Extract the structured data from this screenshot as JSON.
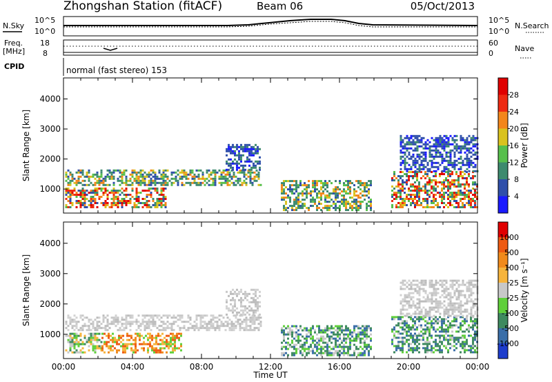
{
  "header": {
    "station": "Zhongshan Station (fitACF)",
    "beam": "Beam 06",
    "date": "05/Oct/2013"
  },
  "housekeeping": {
    "nsky_label": "N.Sky",
    "nsky_ticks": [
      "10^5",
      "10^0"
    ],
    "nsearch_label": "N.Search",
    "nsearch_ticks": [
      "10^5",
      "10^0"
    ],
    "freq_label": "Freq.",
    "freq_unit": "[MHz]",
    "freq_ticks": [
      "18",
      "8"
    ],
    "nave_label": "Nave",
    "nave_ticks": [
      "60",
      "0"
    ],
    "cpid_label": "CPID",
    "cpid_value": "normal (fast stereo) 153"
  },
  "x_axis": {
    "label": "Time UT",
    "ticks": [
      "00:00",
      "04:00",
      "08:00",
      "12:00",
      "16:00",
      "20:00",
      "00:00"
    ]
  },
  "chart_data": [
    {
      "type": "heatmap",
      "quantity": "Power",
      "ylabel": "Slant Range [km]",
      "xlabel": "Time UT",
      "yticks": [
        1000,
        2000,
        3000,
        4000
      ],
      "ylim": [
        200,
        4700
      ],
      "xlim_hours": [
        0,
        24
      ],
      "colorbar": {
        "label": "Power [dB]",
        "ticks": [
          "4",
          "8",
          "12",
          "16",
          "20",
          "24",
          "28"
        ],
        "colors": [
          "#1a1aff",
          "#2f4faa",
          "#3d8a6e",
          "#57bf4c",
          "#d9c21e",
          "#f3861c",
          "#ee2a12",
          "#e00000"
        ]
      },
      "echo_regions": [
        {
          "t_start": 0.1,
          "t_end": 5.9,
          "r_low": 380,
          "r_high": 1050,
          "level": "high"
        },
        {
          "t_start": 0.1,
          "t_end": 11.4,
          "r_low": 1100,
          "r_high": 1650,
          "level": "medium"
        },
        {
          "t_start": 9.4,
          "t_end": 11.4,
          "r_low": 1650,
          "r_high": 2500,
          "level": "low"
        },
        {
          "t_start": 12.6,
          "t_end": 17.8,
          "r_low": 300,
          "r_high": 1300,
          "level": "medium"
        },
        {
          "t_start": 19.0,
          "t_end": 24.0,
          "r_low": 400,
          "r_high": 1600,
          "level": "high"
        },
        {
          "t_start": 19.5,
          "t_end": 24.0,
          "r_low": 1600,
          "r_high": 2800,
          "level": "low"
        }
      ]
    },
    {
      "type": "heatmap",
      "quantity": "Velocity",
      "ylabel": "Slant Range [km]",
      "xlabel": "Time UT",
      "yticks": [
        1000,
        2000,
        3000,
        4000
      ],
      "ylim": [
        200,
        4700
      ],
      "xlim_hours": [
        0,
        24
      ],
      "colorbar": {
        "label": "Velocity [m s⁻¹]",
        "ticks": [
          "1000",
          "500",
          "100",
          "25",
          "-25",
          "-100",
          "-500",
          "-1000"
        ],
        "colors": [
          "#1e3dcc",
          "#3a6ea8",
          "#3e8a5f",
          "#5fcf3a",
          "#c8c8c8",
          "#f6b43c",
          "#f08a1c",
          "#ee5a12",
          "#e00000"
        ]
      },
      "echo_regions": [
        {
          "t_start": 0.1,
          "t_end": 2.2,
          "r_low": 380,
          "r_high": 1050,
          "level": "green"
        },
        {
          "t_start": 2.2,
          "t_end": 6.8,
          "r_low": 380,
          "r_high": 1050,
          "level": "orange"
        },
        {
          "t_start": 0.1,
          "t_end": 11.4,
          "r_low": 1150,
          "r_high": 1650,
          "level": "grey"
        },
        {
          "t_start": 9.4,
          "t_end": 11.4,
          "r_low": 1650,
          "r_high": 2500,
          "level": "grey"
        },
        {
          "t_start": 12.6,
          "t_end": 17.8,
          "r_low": 300,
          "r_high": 1300,
          "level": "teal"
        },
        {
          "t_start": 19.0,
          "t_end": 24.0,
          "r_low": 400,
          "r_high": 1600,
          "level": "teal"
        },
        {
          "t_start": 19.5,
          "t_end": 24.0,
          "r_low": 1600,
          "r_high": 2800,
          "level": "grey"
        }
      ]
    }
  ]
}
